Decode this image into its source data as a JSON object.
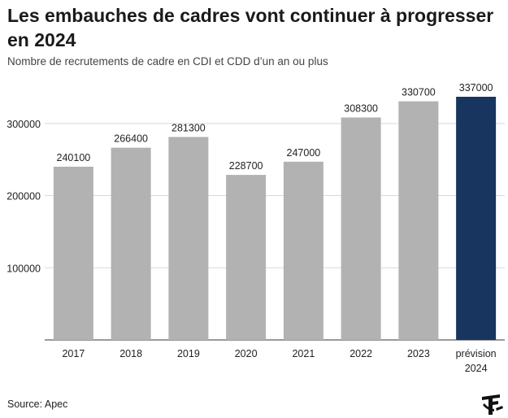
{
  "title": "Les embauches de cadres vont continuer à progresser en 2024",
  "subtitle": "Nombre de recrutements de cadre en CDI et CDD d’un an ou plus",
  "source": "Source: Apec",
  "logo_icon": "le-figaro-logo",
  "colors": {
    "bar": "#b2b2b2",
    "highlight": "#17355e",
    "grid": "#d9d9d9"
  },
  "chart_data": {
    "type": "bar",
    "categories": [
      "2017",
      "2018",
      "2019",
      "2020",
      "2021",
      "2022",
      "2023",
      "prévision 2024"
    ],
    "values": [
      240100,
      266400,
      281300,
      228700,
      247000,
      308300,
      330700,
      337000
    ],
    "highlight_index": 7,
    "y_ticks": [
      100000,
      200000,
      300000
    ],
    "ylim": [
      0,
      337000
    ],
    "grid": true,
    "value_labels": true
  }
}
